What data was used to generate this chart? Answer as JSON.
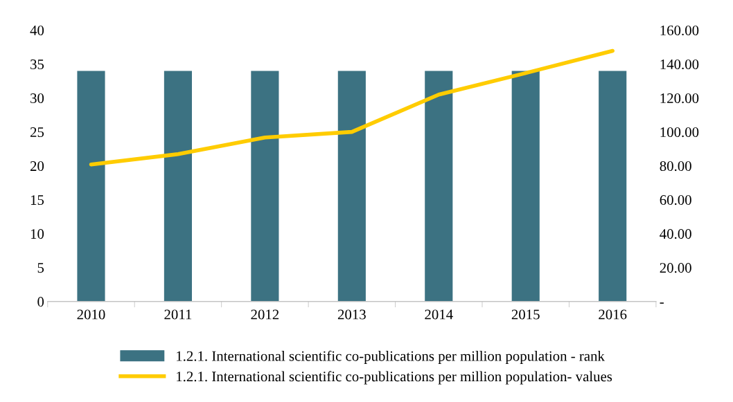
{
  "chart_data": {
    "type": "bar",
    "categories": [
      "2010",
      "2011",
      "2012",
      "2013",
      "2014",
      "2015",
      "2016"
    ],
    "series": [
      {
        "name": "1.2.1. International scientific co-publications per million population - rank",
        "color": "#3c7282",
        "values": [
          34,
          34,
          34,
          34,
          34,
          34,
          34
        ]
      },
      {
        "name": "1.2.1. International scientific co-publications per million population- values",
        "color": "#ffcc00",
        "type": "line",
        "axis": "y2",
        "values": [
          80.8,
          86.9,
          96.7,
          100,
          122,
          134.7,
          147.8
        ]
      }
    ],
    "ylim": [
      0,
      40
    ],
    "yticks": [
      0,
      5,
      10,
      15,
      20,
      25,
      30,
      35,
      40
    ],
    "y2lim": [
      0,
      160
    ],
    "y2ticks": [
      {
        "value": 0,
        "label": "-"
      },
      {
        "value": 20,
        "label": "20.00"
      },
      {
        "value": 40,
        "label": "40.00"
      },
      {
        "value": 60,
        "label": "60.00"
      },
      {
        "value": 80,
        "label": "80.00"
      },
      {
        "value": 100,
        "label": "100.00"
      },
      {
        "value": 120,
        "label": "120.00"
      },
      {
        "value": 140,
        "label": "140.00"
      },
      {
        "value": 160,
        "label": "160.00"
      }
    ],
    "grid": false,
    "legend": "bottom",
    "marker": "none"
  }
}
